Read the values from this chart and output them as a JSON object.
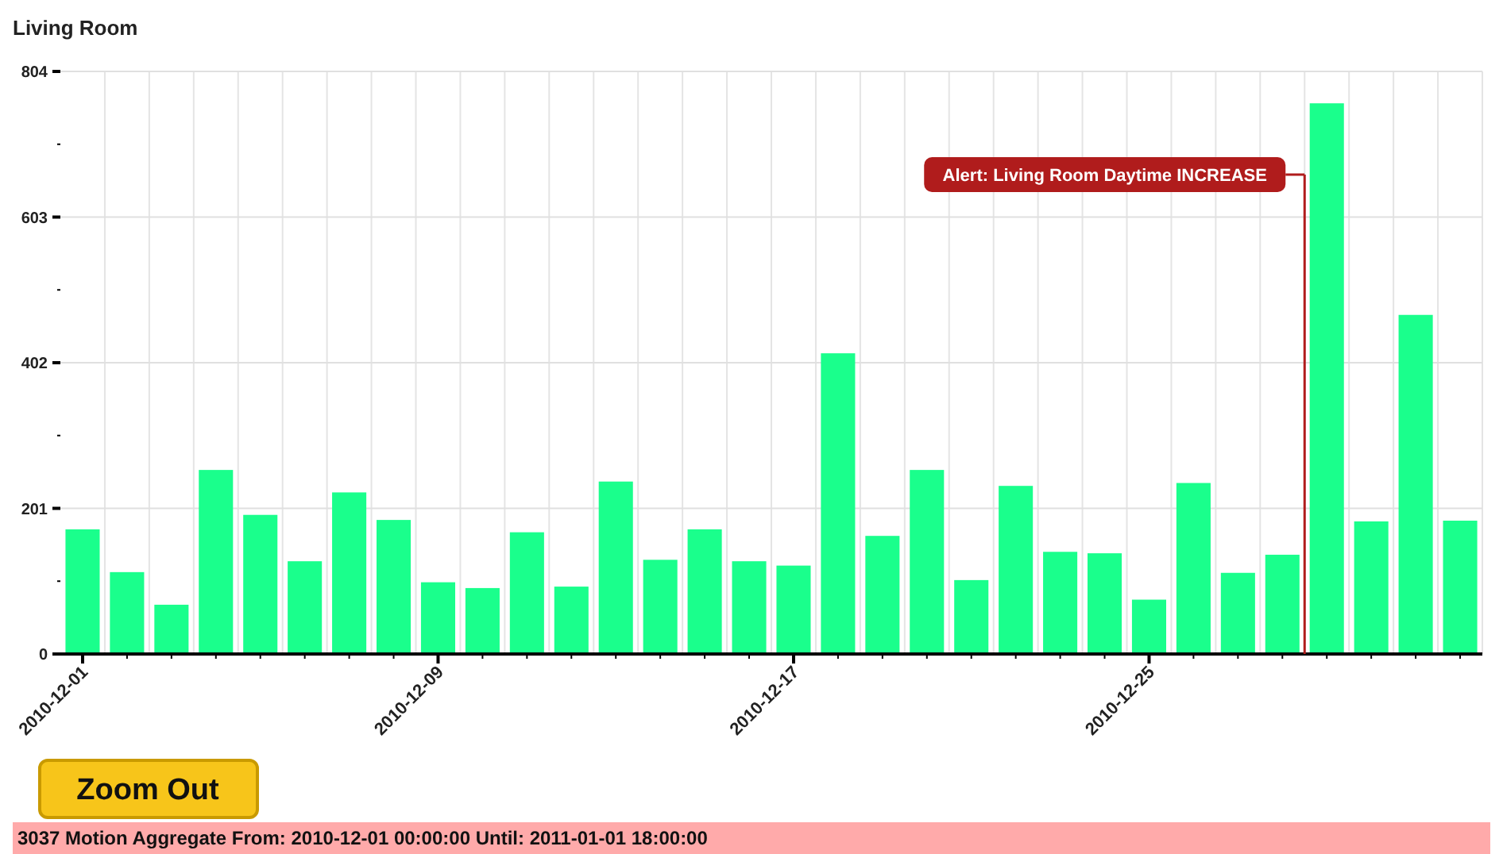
{
  "chart_data": {
    "type": "bar",
    "title": "Living Room",
    "x": [
      "2010-12-01",
      "2010-12-02",
      "2010-12-03",
      "2010-12-04",
      "2010-12-05",
      "2010-12-06",
      "2010-12-07",
      "2010-12-08",
      "2010-12-09",
      "2010-12-10",
      "2010-12-11",
      "2010-12-12",
      "2010-12-13",
      "2010-12-14",
      "2010-12-15",
      "2010-12-16",
      "2010-12-17",
      "2010-12-18",
      "2010-12-19",
      "2010-12-20",
      "2010-12-21",
      "2010-12-22",
      "2010-12-23",
      "2010-12-24",
      "2010-12-25",
      "2010-12-26",
      "2010-12-27",
      "2010-12-28",
      "2010-12-29",
      "2010-12-30",
      "2010-12-31",
      "2011-01-01"
    ],
    "values": [
      172,
      113,
      68,
      254,
      192,
      128,
      223,
      185,
      99,
      91,
      168,
      93,
      238,
      130,
      172,
      128,
      122,
      415,
      163,
      254,
      102,
      232,
      141,
      139,
      75,
      236,
      112,
      137,
      760,
      183,
      468,
      184
    ],
    "color": "#1aff8c",
    "ylim": [
      0,
      804
    ],
    "yticks": [
      0,
      {
        "value": 100.5,
        "label": null
      },
      201,
      {
        "value": 301.5,
        "label": null
      },
      402,
      {
        "value": 502.5,
        "label": null
      },
      603,
      {
        "value": 703.5,
        "label": null
      },
      804
    ],
    "xlim": [
      "2010-11-30T12:00",
      "2011-01-01T12:00"
    ],
    "xticks": [
      "2010-12-01",
      {
        "value": "2010-12-02",
        "label": null
      },
      {
        "value": "2010-12-03",
        "label": null
      },
      {
        "value": "2010-12-04",
        "label": null
      },
      {
        "value": "2010-12-05",
        "label": null
      },
      {
        "value": "2010-12-06",
        "label": null
      },
      {
        "value": "2010-12-07",
        "label": null
      },
      {
        "value": "2010-12-08",
        "label": null
      },
      "2010-12-09",
      {
        "value": "2010-12-10",
        "label": null
      },
      {
        "value": "2010-12-11",
        "label": null
      },
      {
        "value": "2010-12-12",
        "label": null
      },
      {
        "value": "2010-12-13",
        "label": null
      },
      {
        "value": "2010-12-14",
        "label": null
      },
      {
        "value": "2010-12-15",
        "label": null
      },
      {
        "value": "2010-12-16",
        "label": null
      },
      "2010-12-17",
      {
        "value": "2010-12-18",
        "label": null
      },
      {
        "value": "2010-12-19",
        "label": null
      },
      {
        "value": "2010-12-20",
        "label": null
      },
      {
        "value": "2010-12-21",
        "label": null
      },
      {
        "value": "2010-12-22",
        "label": null
      },
      {
        "value": "2010-12-23",
        "label": null
      },
      {
        "value": "2010-12-24",
        "label": null
      },
      "2010-12-25",
      {
        "value": "2010-12-26",
        "label": null
      },
      {
        "value": "2010-12-27",
        "label": null
      },
      {
        "value": "2010-12-28",
        "label": null
      },
      {
        "value": "2010-12-29",
        "label": null
      },
      {
        "value": "2010-12-30",
        "label": null
      },
      {
        "value": "2010-12-31",
        "label": null
      },
      {
        "value": "2011-01-01",
        "label": null
      }
    ],
    "grid": true,
    "ref_lines": [
      {
        "axis": "x",
        "value": "2010-12-28T12:00",
        "label": "Alert: Living Room Daytime INCREASE",
        "color": "#b01c1c"
      }
    ],
    "annotations": [
      "Zoom Out",
      "3037 Motion Aggregate From: 2010-12-01 00:00:00 Until: 2011-01-01 18:00:00"
    ]
  }
}
